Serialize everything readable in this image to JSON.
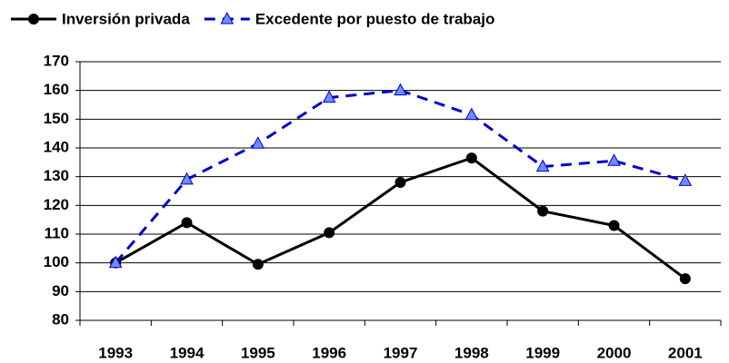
{
  "chart_data": {
    "type": "line",
    "categories": [
      "1993",
      "1994",
      "1995",
      "1996",
      "1997",
      "1998",
      "1999",
      "2000",
      "2001"
    ],
    "series": [
      {
        "name": "Inversión privada",
        "color": "#000000",
        "marker": "circle",
        "dashed": false,
        "values": [
          100,
          114,
          99.5,
          110.5,
          128,
          136.5,
          118,
          113,
          94.5
        ]
      },
      {
        "name": "Excedente por puesto de trabajo",
        "color": "#0000cc",
        "marker": "triangle",
        "marker_color": "#6f8cff",
        "dashed": true,
        "values": [
          100,
          129,
          141.5,
          157.5,
          160,
          151.5,
          133.5,
          135.5,
          128.5
        ]
      }
    ],
    "ylim": [
      80,
      170
    ],
    "yticks": [
      80,
      90,
      100,
      110,
      120,
      130,
      140,
      150,
      160,
      170
    ],
    "grid": true,
    "legend": "top"
  }
}
